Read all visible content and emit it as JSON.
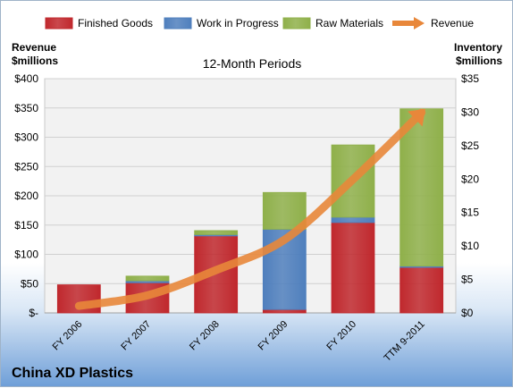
{
  "chart_data": {
    "type": "bar",
    "subtitle": "12-Month Periods",
    "company": "China XD Plastics",
    "categories": [
      "FY 2006",
      "FY 2007",
      "FY 2008",
      "FY 2009",
      "FY 2010",
      "TTM 9-2011"
    ],
    "series": [
      {
        "name": "Finished Goods",
        "axis": "right",
        "stack": "inventory",
        "color": "#c0282d",
        "values": [
          4.2,
          4.5,
          11.5,
          0.5,
          13.5,
          6.8
        ]
      },
      {
        "name": "Work in Progress",
        "axis": "right",
        "stack": "inventory",
        "color": "#4f7fbd",
        "values": [
          0,
          0.3,
          0.2,
          12.0,
          0.8,
          0.2
        ]
      },
      {
        "name": "Raw Materials",
        "axis": "right",
        "stack": "inventory",
        "color": "#8fb04a",
        "values": [
          0,
          0.7,
          0.6,
          5.5,
          10.8,
          23.5
        ]
      },
      {
        "name": "Revenue",
        "axis": "left",
        "type": "line",
        "color": "#e8873a",
        "values": [
          12,
          30,
          73,
          125,
          228,
          342
        ]
      }
    ],
    "left_axis": {
      "title_line1": "Revenue",
      "title_line2": "$millions",
      "min": 0,
      "max": 400,
      "ticks": [
        "$-",
        "$50",
        "$100",
        "$150",
        "$200",
        "$250",
        "$300",
        "$350",
        "$400"
      ]
    },
    "right_axis": {
      "title_line1": "Inventory",
      "title_line2": "$millions",
      "min": 0,
      "max": 35,
      "ticks": [
        "$0",
        "$5",
        "$10",
        "$15",
        "$20",
        "$25",
        "$30",
        "$35"
      ]
    },
    "grid": true,
    "legend_position": "top"
  }
}
